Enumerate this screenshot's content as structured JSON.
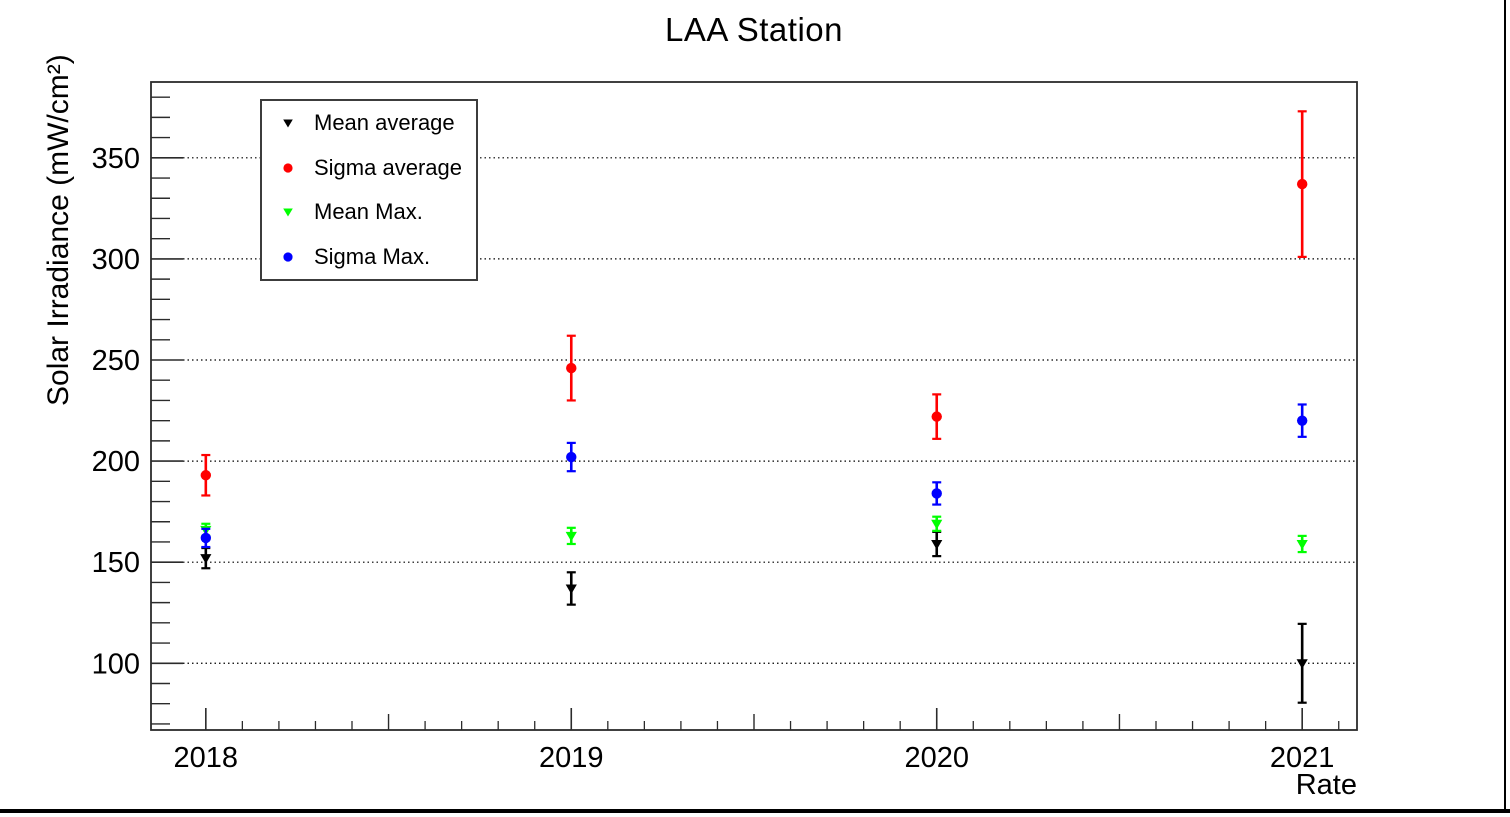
{
  "chart_data": {
    "type": "scatter",
    "title": "LAA Station",
    "xlabel": "Rate",
    "ylabel": "Solar Irradiance (mW/cm²)",
    "x_categories": [
      2018,
      2019,
      2020,
      2021
    ],
    "series": [
      {
        "name": "Mean average",
        "marker": "triangle-down",
        "color": "#000000",
        "values": [
          152,
          137,
          159,
          100
        ],
        "errors": [
          5,
          8,
          6,
          19.5
        ]
      },
      {
        "name": "Sigma average",
        "marker": "circle",
        "color": "#ff0000",
        "values": [
          193,
          246,
          222,
          337
        ],
        "errors": [
          10,
          16,
          11,
          36
        ]
      },
      {
        "name": "Mean Max.",
        "marker": "triangle-down",
        "color": "#00ff00",
        "values": [
          166,
          163,
          169,
          159
        ],
        "errors": [
          3,
          4,
          3.5,
          4
        ]
      },
      {
        "name": "Sigma Max.",
        "marker": "circle",
        "color": "#0000ff",
        "values": [
          162,
          202,
          184,
          220
        ],
        "errors": [
          4.5,
          7,
          5.5,
          8
        ]
      }
    ],
    "ylim": [
      67,
      387.5
    ],
    "xlim": [
      2017.85,
      2021.15
    ],
    "y_major_ticks": [
      100,
      150,
      200,
      250,
      300,
      350
    ],
    "y_minor_step": 10,
    "x_major_ticks": [
      2018,
      2019,
      2020,
      2021
    ],
    "x_mid_ticks": [
      2018.5,
      2019.5,
      2020.5
    ],
    "x_minor_step": 0.1,
    "grid": "dotted-horizontal",
    "legend_position": "top-left"
  }
}
